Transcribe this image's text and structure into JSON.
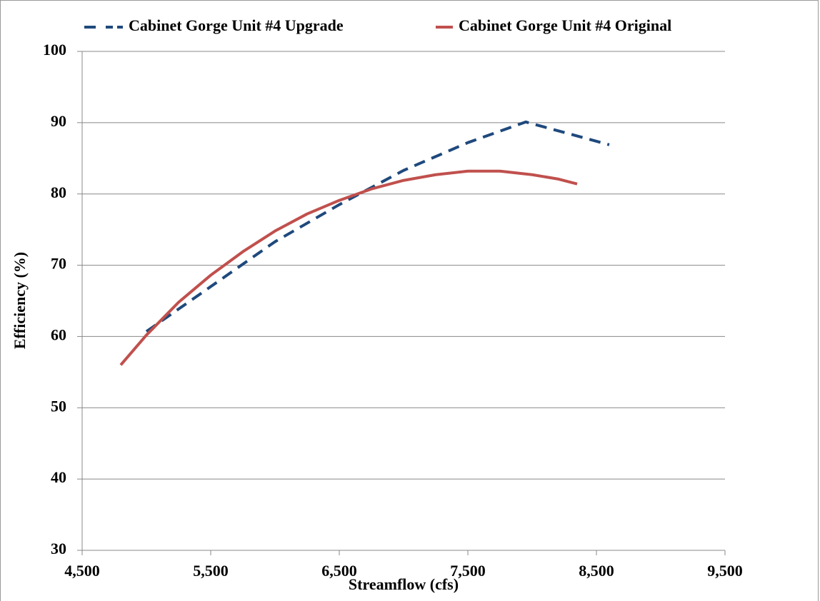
{
  "chart_data": {
    "type": "line",
    "x_label": "Streamflow (cfs)",
    "y_label": "Efficiency (%)",
    "xlim": [
      4500,
      9500
    ],
    "xticks": [
      {
        "value": 4500,
        "label": "4,500"
      },
      {
        "value": 5500,
        "label": "5,500"
      },
      {
        "value": 6500,
        "label": "6,500"
      },
      {
        "value": 7500,
        "label": "7,500"
      },
      {
        "value": 8500,
        "label": "8,500"
      },
      {
        "value": 9500,
        "label": "9,500"
      }
    ],
    "ylim": [
      30,
      100
    ],
    "yticks": [
      30,
      40,
      50,
      60,
      70,
      80,
      90,
      100
    ],
    "grid": true,
    "legend": "top",
    "series": [
      {
        "name": "Cabinet Gorge Unit #4 Upgrade",
        "color": "#1f497d",
        "dashed": true,
        "x": [
          5000,
          5500,
          6000,
          6500,
          7000,
          7500,
          7950,
          8600
        ],
        "values": [
          60.7,
          67,
          73.3,
          78.5,
          83.3,
          87.2,
          90.1,
          86.9
        ]
      },
      {
        "name": "Cabinet Gorge Unit #4 Original",
        "color": "#c0504d",
        "dashed": false,
        "x": [
          4800,
          5000,
          5250,
          5500,
          5750,
          6000,
          6250,
          6500,
          6750,
          7000,
          7250,
          7500,
          7750,
          8000,
          8200,
          8350
        ],
        "values": [
          56,
          60.2,
          64.8,
          68.6,
          71.9,
          74.8,
          77.2,
          79.1,
          80.7,
          81.9,
          82.7,
          83.2,
          83.2,
          82.7,
          82.1,
          81.4
        ]
      }
    ]
  }
}
